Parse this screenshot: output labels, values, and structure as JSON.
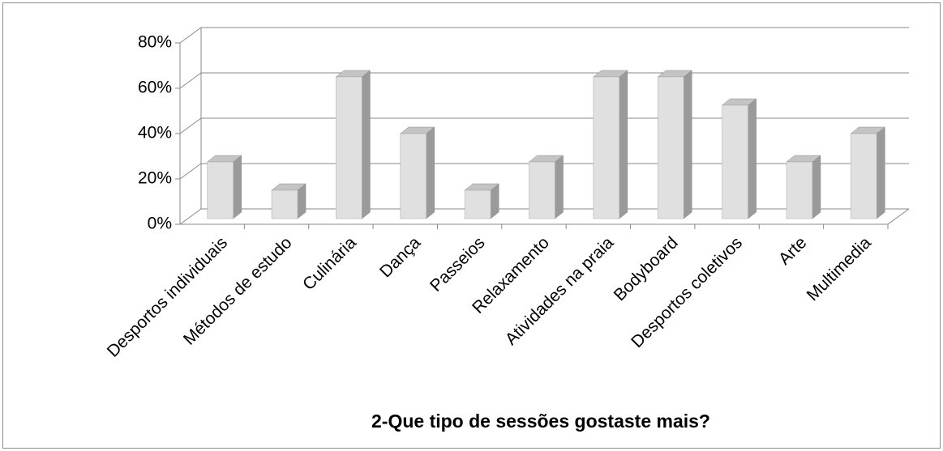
{
  "chart_data": {
    "type": "bar3d",
    "title": "2-Que tipo de sessões gostaste mais?",
    "categories": [
      "Desportos individuais",
      "Métodos de estudo",
      "Culinária",
      "Dança",
      "Passeios",
      "Relaxamento",
      "Atividades na praia",
      "Bodyboard",
      "Desportos coletivos",
      "Arte",
      "Multimedia"
    ],
    "values": [
      25,
      12.5,
      62.5,
      37.5,
      12.5,
      25,
      62.5,
      62.5,
      50,
      25,
      37.5
    ],
    "color": "#e0e0e0",
    "ylim": [
      0,
      80
    ],
    "yticks": [
      {
        "value": 0,
        "label": "0%"
      },
      {
        "value": 20,
        "label": "20%"
      },
      {
        "value": 40,
        "label": "40%"
      },
      {
        "value": 60,
        "label": "60%"
      },
      {
        "value": 80,
        "label": "80%"
      }
    ],
    "grid": true
  }
}
